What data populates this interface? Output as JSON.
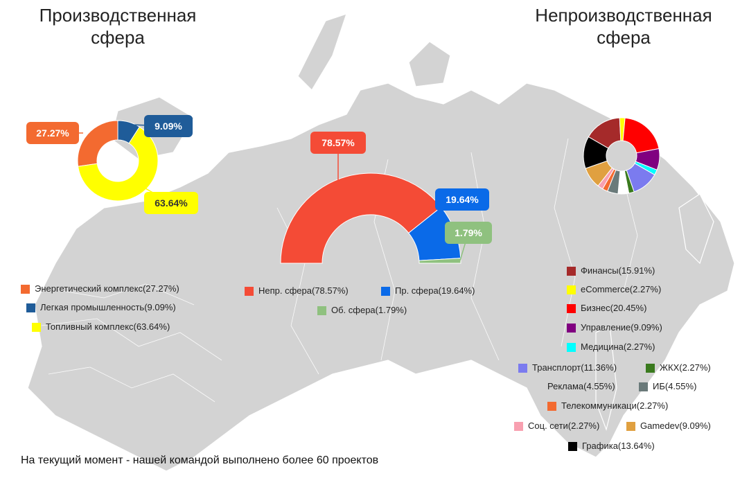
{
  "headings": {
    "left_line1": "Производственная",
    "left_line2": "сфера",
    "right_line1": "Непроизводственная",
    "right_line2": "сфера"
  },
  "footer": "На текущий момент - нашей командой выполнено более 60 проектов",
  "colors": {
    "map": "#d3d3d3",
    "map_border": "#ffffff"
  },
  "chart_data": [
    {
      "type": "pie",
      "chart_id": "production",
      "donut": true,
      "slices": [
        {
          "label": "Энергетический комплекс",
          "value": 27.27,
          "color": "#f36a30",
          "legend_text": "Энергетический комплекс(27.27%)",
          "callout": "27.27%"
        },
        {
          "label": "Легкая промышленность",
          "value": 9.09,
          "color": "#1f5c99",
          "legend_text": "Легкая промышленность(9.09%)",
          "callout": "9.09%"
        },
        {
          "label": "Топливный комплекс",
          "value": 63.64,
          "color": "#ffff00",
          "legend_text": "Топливный комплекс(63.64%)",
          "callout": "63.64%"
        }
      ]
    },
    {
      "type": "pie",
      "chart_id": "overall",
      "donut": true,
      "semi": true,
      "slices": [
        {
          "label": "Непр. сфера",
          "value": 78.57,
          "color": "#f44b36",
          "legend_text": "Непр. сфера(78.57%)",
          "callout": "78.57%"
        },
        {
          "label": "Пр. сфера",
          "value": 19.64,
          "color": "#0a6ae8",
          "legend_text": "Пр. сфера(19.64%)",
          "callout": "19.64%"
        },
        {
          "label": "Об. сфера",
          "value": 1.79,
          "color": "#8fc17f",
          "legend_text": "Об. сфера(1.79%)",
          "callout": "1.79%"
        }
      ]
    },
    {
      "type": "pie",
      "chart_id": "nonproduction",
      "donut": true,
      "slices": [
        {
          "label": "Финансы",
          "value": 15.91,
          "color": "#a52a2a",
          "legend_text": "Финансы(15.91%)"
        },
        {
          "label": "eCommerce",
          "value": 2.27,
          "color": "#ffff00",
          "legend_text": "eCommerce(2.27%)"
        },
        {
          "label": "Бизнес",
          "value": 20.45,
          "color": "#ff0000",
          "legend_text": "Бизнес(20.45%)"
        },
        {
          "label": "Управление",
          "value": 9.09,
          "color": "#800080",
          "legend_text": "Управление(9.09%)"
        },
        {
          "label": "Медицина",
          "value": 2.27,
          "color": "#00ffff",
          "legend_text": "Медицина(2.27%)"
        },
        {
          "label": "Трансплорт",
          "value": 11.36,
          "color": "#7b7bef",
          "legend_text": "Трансплорт(11.36%)"
        },
        {
          "label": "ЖКХ",
          "value": 2.27,
          "color": "#3a7a1e",
          "legend_text": "ЖКХ(2.27%)"
        },
        {
          "label": "Реклама",
          "value": 4.55,
          "color": "#ffffff",
          "legend_text": "Реклама(4.55%)"
        },
        {
          "label": "ИБ",
          "value": 4.55,
          "color": "#6a7a7a",
          "legend_text": "ИБ(4.55%)"
        },
        {
          "label": "Телекоммуникаци",
          "value": 2.27,
          "color": "#f36a30",
          "legend_text": "Телекоммуникаци(2.27%)"
        },
        {
          "label": "Соц. сети",
          "value": 2.27,
          "color": "#f8a0b0",
          "legend_text": "Соц. сети(2.27%)"
        },
        {
          "label": "Gamedev",
          "value": 9.09,
          "color": "#e0a040",
          "legend_text": "Gamedev(9.09%)"
        },
        {
          "label": "Графика",
          "value": 13.64,
          "color": "#000000",
          "legend_text": "Графика(13.64%)"
        }
      ]
    }
  ]
}
